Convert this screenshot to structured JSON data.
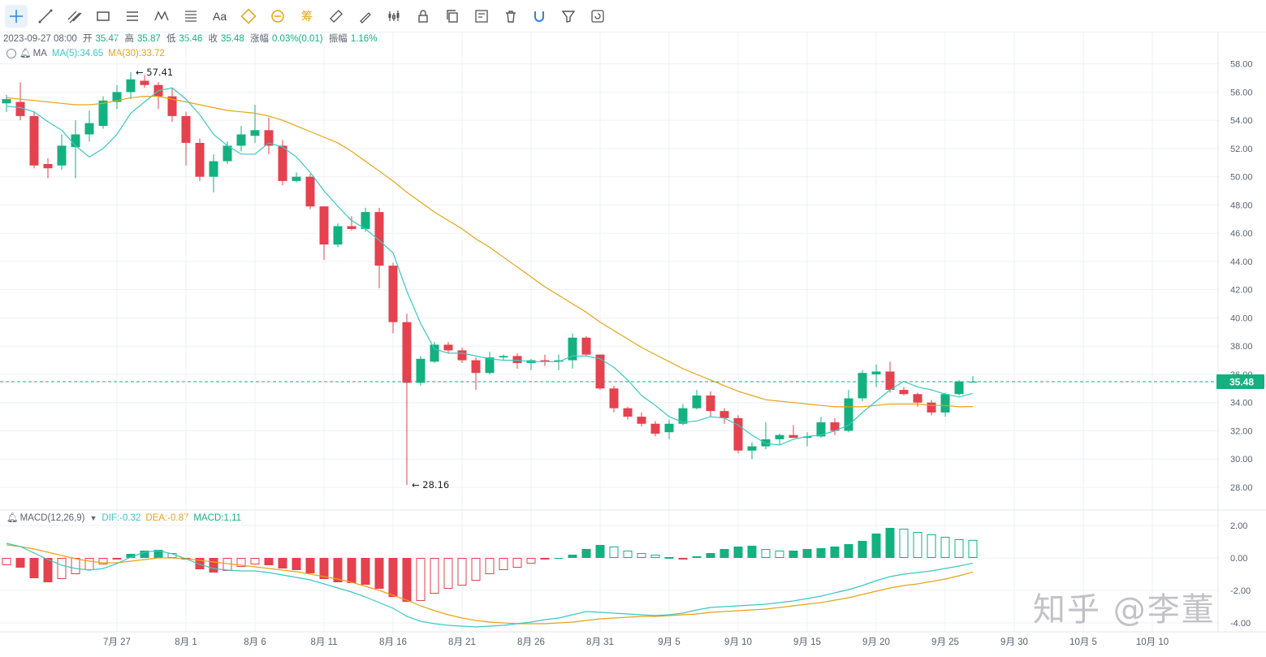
{
  "toolbar": {
    "tools": [
      {
        "icon": "crosshair-icon",
        "active": true
      },
      {
        "icon": "trend-line-icon"
      },
      {
        "icon": "parallel-channel-icon"
      },
      {
        "icon": "rectangle-icon"
      },
      {
        "icon": "horizontal-lines-icon"
      },
      {
        "icon": "wave-pattern-icon"
      },
      {
        "icon": "fibonacci-icon"
      },
      {
        "text": "Aa",
        "icon": "text-tool-icon"
      },
      {
        "icon": "price-range-icon",
        "color": "#e8a317"
      },
      {
        "icon": "date-range-icon",
        "color": "#e8a317"
      },
      {
        "text": "筹",
        "icon": "chip-distribution-icon",
        "color": "#e8a317"
      },
      {
        "icon": "ruler-icon"
      },
      {
        "icon": "brush-icon"
      },
      {
        "icon": "candles-icon"
      },
      {
        "icon": "lock-icon"
      },
      {
        "icon": "copy-icon"
      },
      {
        "icon": "edit-template-icon"
      },
      {
        "icon": "trash-icon"
      },
      {
        "icon": "magnet-icon",
        "color": "#2f80ed"
      },
      {
        "icon": "filter-icon"
      },
      {
        "icon": "refresh-copy-icon"
      }
    ]
  },
  "ohlc_info": {
    "datetime": "2023-09-27 08:00",
    "open_label": "开",
    "open": "35.47",
    "high_label": "高",
    "high": "35.87",
    "low_label": "低",
    "low": "35.46",
    "close_label": "收",
    "close": "35.48",
    "change_label": "涨幅",
    "change": "0.03%(0.01)",
    "amplitude_label": "振幅",
    "amplitude": "1.16%"
  },
  "ma_legend": {
    "name": "MA",
    "ma5": "MA(5):34.65",
    "ma30": "MA(30):33.72"
  },
  "macd_legend": {
    "name": "MACD(12,26,9)",
    "dif": "DIF:-0.32",
    "dea": "DEA:-0.87",
    "macd": "MACD:1.11"
  },
  "colors": {
    "up": "#13b17f",
    "down": "#e5414e",
    "ma5": "#38c9c3",
    "ma30": "#e8a317",
    "grid": "#eef0f3",
    "axis_text": "#5b6270"
  },
  "watermark": "知乎 @李董",
  "chart_data": [
    {
      "type": "candlestick",
      "panel": "price",
      "ylim": [
        27,
        59
      ],
      "yticks": [
        "28.00",
        "30.00",
        "32.00",
        "34.00",
        "36.00",
        "38.00",
        "40.00",
        "42.00",
        "44.00",
        "46.00",
        "48.00",
        "50.00",
        "52.00",
        "54.00",
        "56.00",
        "58.00"
      ],
      "last_price_label": "35.48",
      "last_price": 35.48,
      "high_annotation": {
        "label": "57.41",
        "value": 57.41,
        "index": 9
      },
      "low_annotation": {
        "label": "28.16",
        "value": 28.16,
        "index": 29
      },
      "xtick_labels": [
        {
          "label": "7月 27",
          "index": 8
        },
        {
          "label": "8月 1",
          "index": 13
        },
        {
          "label": "8月 6",
          "index": 18
        },
        {
          "label": "8月 11",
          "index": 23
        },
        {
          "label": "8月 16",
          "index": 28
        },
        {
          "label": "8月 21",
          "index": 33
        },
        {
          "label": "8月 26",
          "index": 38
        },
        {
          "label": "8月 31",
          "index": 43
        },
        {
          "label": "9月 5",
          "index": 48
        },
        {
          "label": "9月 10",
          "index": 53
        },
        {
          "label": "9月 15",
          "index": 58
        },
        {
          "label": "9月 20",
          "index": 63
        },
        {
          "label": "9月 25",
          "index": 68
        },
        {
          "label": "9月 30",
          "index": 73
        },
        {
          "label": "10月 5",
          "index": 78
        },
        {
          "label": "10月 10",
          "index": 83
        }
      ],
      "candles": [
        {
          "o": 55.2,
          "h": 55.8,
          "l": 54.6,
          "c": 55.5
        },
        {
          "o": 55.3,
          "h": 56.7,
          "l": 54.0,
          "c": 54.3
        },
        {
          "o": 54.3,
          "h": 54.6,
          "l": 50.6,
          "c": 50.8
        },
        {
          "o": 50.9,
          "h": 51.3,
          "l": 49.9,
          "c": 50.6
        },
        {
          "o": 50.8,
          "h": 53.0,
          "l": 50.5,
          "c": 52.2
        },
        {
          "o": 52.1,
          "h": 54.0,
          "l": 49.9,
          "c": 53.0
        },
        {
          "o": 53.0,
          "h": 54.7,
          "l": 52.5,
          "c": 53.8
        },
        {
          "o": 53.6,
          "h": 55.7,
          "l": 53.4,
          "c": 55.4
        },
        {
          "o": 55.3,
          "h": 56.5,
          "l": 54.8,
          "c": 56.0
        },
        {
          "o": 56.0,
          "h": 57.41,
          "l": 55.5,
          "c": 56.9
        },
        {
          "o": 56.8,
          "h": 57.2,
          "l": 56.3,
          "c": 56.5
        },
        {
          "o": 56.5,
          "h": 56.7,
          "l": 54.8,
          "c": 55.7
        },
        {
          "o": 55.7,
          "h": 56.3,
          "l": 53.9,
          "c": 54.3
        },
        {
          "o": 54.3,
          "h": 54.6,
          "l": 50.8,
          "c": 52.4
        },
        {
          "o": 52.4,
          "h": 52.7,
          "l": 49.7,
          "c": 50.0
        },
        {
          "o": 50.0,
          "h": 51.6,
          "l": 48.9,
          "c": 51.1
        },
        {
          "o": 51.1,
          "h": 52.5,
          "l": 50.9,
          "c": 52.2
        },
        {
          "o": 52.2,
          "h": 53.6,
          "l": 51.8,
          "c": 53.0
        },
        {
          "o": 52.9,
          "h": 55.1,
          "l": 52.4,
          "c": 53.3
        },
        {
          "o": 53.3,
          "h": 54.2,
          "l": 51.6,
          "c": 52.2
        },
        {
          "o": 52.2,
          "h": 52.6,
          "l": 49.4,
          "c": 49.7
        },
        {
          "o": 49.7,
          "h": 50.3,
          "l": 49.6,
          "c": 50.0
        },
        {
          "o": 50.0,
          "h": 50.2,
          "l": 47.7,
          "c": 47.9
        },
        {
          "o": 47.9,
          "h": 47.9,
          "l": 44.1,
          "c": 45.2
        },
        {
          "o": 45.2,
          "h": 46.7,
          "l": 45.0,
          "c": 46.5
        },
        {
          "o": 46.5,
          "h": 47.2,
          "l": 46.2,
          "c": 46.3
        },
        {
          "o": 46.3,
          "h": 47.8,
          "l": 46.1,
          "c": 47.5
        },
        {
          "o": 47.5,
          "h": 47.8,
          "l": 42.1,
          "c": 43.7
        },
        {
          "o": 43.7,
          "h": 43.9,
          "l": 38.9,
          "c": 39.7
        },
        {
          "o": 39.7,
          "h": 40.3,
          "l": 28.16,
          "c": 35.4
        },
        {
          "o": 35.4,
          "h": 37.3,
          "l": 35.2,
          "c": 37.1
        },
        {
          "o": 36.9,
          "h": 38.3,
          "l": 36.8,
          "c": 38.1
        },
        {
          "o": 38.1,
          "h": 38.3,
          "l": 37.5,
          "c": 37.7
        },
        {
          "o": 37.7,
          "h": 37.9,
          "l": 36.8,
          "c": 37.0
        },
        {
          "o": 37.0,
          "h": 37.2,
          "l": 34.9,
          "c": 36.1
        },
        {
          "o": 36.1,
          "h": 37.6,
          "l": 36.0,
          "c": 37.2
        },
        {
          "o": 37.2,
          "h": 37.4,
          "l": 37.0,
          "c": 37.3
        },
        {
          "o": 37.3,
          "h": 37.5,
          "l": 36.4,
          "c": 36.8
        },
        {
          "o": 36.8,
          "h": 37.1,
          "l": 36.3,
          "c": 37.0
        },
        {
          "o": 37.0,
          "h": 37.4,
          "l": 36.6,
          "c": 36.9
        },
        {
          "o": 36.9,
          "h": 37.4,
          "l": 36.3,
          "c": 37.0
        },
        {
          "o": 37.0,
          "h": 38.9,
          "l": 36.4,
          "c": 38.6
        },
        {
          "o": 38.6,
          "h": 38.7,
          "l": 37.3,
          "c": 37.4
        },
        {
          "o": 37.4,
          "h": 37.4,
          "l": 34.9,
          "c": 35.0
        },
        {
          "o": 35.0,
          "h": 35.2,
          "l": 33.3,
          "c": 33.6
        },
        {
          "o": 33.6,
          "h": 33.7,
          "l": 32.8,
          "c": 33.0
        },
        {
          "o": 33.0,
          "h": 33.3,
          "l": 32.3,
          "c": 32.5
        },
        {
          "o": 32.5,
          "h": 32.7,
          "l": 31.6,
          "c": 31.8
        },
        {
          "o": 31.9,
          "h": 32.8,
          "l": 31.4,
          "c": 32.5
        },
        {
          "o": 32.5,
          "h": 33.9,
          "l": 32.4,
          "c": 33.6
        },
        {
          "o": 33.6,
          "h": 34.9,
          "l": 33.5,
          "c": 34.5
        },
        {
          "o": 34.5,
          "h": 34.8,
          "l": 33.0,
          "c": 33.4
        },
        {
          "o": 33.4,
          "h": 33.6,
          "l": 32.5,
          "c": 32.9
        },
        {
          "o": 32.9,
          "h": 33.1,
          "l": 30.4,
          "c": 30.6
        },
        {
          "o": 30.6,
          "h": 31.2,
          "l": 30.0,
          "c": 30.9
        },
        {
          "o": 30.9,
          "h": 32.6,
          "l": 30.7,
          "c": 31.4
        },
        {
          "o": 31.4,
          "h": 31.8,
          "l": 31.0,
          "c": 31.7
        },
        {
          "o": 31.7,
          "h": 32.4,
          "l": 31.5,
          "c": 31.5
        },
        {
          "o": 31.5,
          "h": 31.9,
          "l": 30.9,
          "c": 31.6
        },
        {
          "o": 31.6,
          "h": 33.0,
          "l": 31.5,
          "c": 32.6
        },
        {
          "o": 32.6,
          "h": 32.9,
          "l": 31.7,
          "c": 32.0
        },
        {
          "o": 32.0,
          "h": 34.9,
          "l": 31.9,
          "c": 34.3
        },
        {
          "o": 34.3,
          "h": 36.3,
          "l": 34.1,
          "c": 36.1
        },
        {
          "o": 36.0,
          "h": 36.7,
          "l": 35.1,
          "c": 36.2
        },
        {
          "o": 36.2,
          "h": 36.9,
          "l": 34.7,
          "c": 34.9
        },
        {
          "o": 34.9,
          "h": 35.1,
          "l": 34.5,
          "c": 34.6
        },
        {
          "o": 34.6,
          "h": 34.7,
          "l": 33.7,
          "c": 34.0
        },
        {
          "o": 34.0,
          "h": 34.2,
          "l": 33.1,
          "c": 33.3
        },
        {
          "o": 33.3,
          "h": 34.7,
          "l": 33.0,
          "c": 34.6
        },
        {
          "o": 34.6,
          "h": 35.6,
          "l": 34.5,
          "c": 35.5
        },
        {
          "o": 35.47,
          "h": 35.87,
          "l": 35.46,
          "c": 35.48
        }
      ],
      "ma5": [
        55.0,
        54.9,
        54.6,
        53.9,
        53.3,
        52.2,
        51.4,
        52.0,
        53.0,
        54.5,
        55.3,
        56.1,
        56.3,
        55.5,
        54.4,
        53.0,
        52.2,
        51.6,
        51.6,
        52.4,
        52.1,
        51.4,
        50.3,
        49.0,
        47.9,
        46.9,
        46.3,
        45.5,
        44.6,
        41.9,
        39.6,
        37.8,
        37.5,
        37.5,
        37.3,
        37.1,
        37.0,
        37.0,
        36.9,
        36.9,
        36.9,
        37.3,
        37.3,
        37.1,
        36.5,
        35.6,
        34.5,
        33.8,
        33.0,
        32.6,
        32.7,
        33.0,
        32.9,
        32.4,
        31.7,
        31.1,
        31.0,
        31.4,
        31.6,
        31.7,
        32.0,
        32.4,
        33.3,
        34.1,
        34.9,
        35.5,
        35.1,
        34.9,
        34.6,
        34.4,
        34.65
      ],
      "ma30": [
        55.6,
        55.5,
        55.4,
        55.3,
        55.2,
        55.1,
        55.1,
        55.2,
        55.4,
        55.6,
        55.7,
        55.7,
        55.5,
        55.3,
        55.1,
        54.9,
        54.7,
        54.6,
        54.5,
        54.3,
        54.0,
        53.6,
        53.2,
        52.8,
        52.4,
        51.8,
        51.1,
        50.4,
        49.7,
        48.9,
        48.2,
        47.5,
        46.9,
        46.3,
        45.6,
        45.0,
        44.3,
        43.6,
        42.9,
        42.2,
        41.6,
        41.0,
        40.4,
        39.7,
        39.1,
        38.5,
        37.9,
        37.4,
        36.9,
        36.4,
        36.0,
        35.6,
        35.2,
        34.8,
        34.5,
        34.2,
        34.1,
        34.0,
        33.9,
        33.8,
        33.7,
        33.7,
        33.7,
        33.8,
        33.9,
        33.9,
        33.9,
        33.8,
        33.8,
        33.7,
        33.72
      ]
    },
    {
      "type": "bar",
      "panel": "macd",
      "ylim": [
        -4.2,
        2.8
      ],
      "yticks": [
        "2.00",
        "0.00",
        "-2.00",
        "-4.00"
      ],
      "hist": [
        -0.45,
        -0.6,
        -1.25,
        -1.5,
        -1.3,
        -1.0,
        -0.75,
        -0.4,
        -0.1,
        0.25,
        0.45,
        0.5,
        0.3,
        -0.1,
        -0.7,
        -0.9,
        -0.8,
        -0.55,
        -0.4,
        -0.45,
        -0.65,
        -0.75,
        -0.95,
        -1.3,
        -1.5,
        -1.55,
        -1.65,
        -1.9,
        -2.4,
        -2.7,
        -2.65,
        -2.2,
        -1.9,
        -1.7,
        -1.4,
        -1.0,
        -0.75,
        -0.6,
        -0.35,
        -0.1,
        0.0,
        0.2,
        0.55,
        0.8,
        0.7,
        0.45,
        0.3,
        0.2,
        0.05,
        -0.1,
        0.1,
        0.3,
        0.55,
        0.7,
        0.75,
        0.55,
        0.45,
        0.45,
        0.55,
        0.6,
        0.7,
        0.85,
        1.05,
        1.5,
        1.85,
        1.8,
        1.6,
        1.45,
        1.3,
        1.15,
        1.11
      ],
      "dif": [
        0.9,
        0.7,
        0.3,
        -0.1,
        -0.45,
        -0.65,
        -0.75,
        -0.65,
        -0.35,
        0.05,
        0.35,
        0.45,
        0.25,
        -0.05,
        -0.4,
        -0.65,
        -0.75,
        -0.8,
        -0.8,
        -0.9,
        -1.05,
        -1.2,
        -1.35,
        -1.6,
        -1.85,
        -2.1,
        -2.4,
        -2.75,
        -3.1,
        -3.6,
        -3.9,
        -4.05,
        -4.15,
        -4.2,
        -4.25,
        -4.2,
        -4.15,
        -4.05,
        -3.95,
        -3.8,
        -3.7,
        -3.5,
        -3.3,
        -3.35,
        -3.4,
        -3.45,
        -3.5,
        -3.55,
        -3.5,
        -3.4,
        -3.2,
        -3.05,
        -3.0,
        -2.95,
        -2.9,
        -2.85,
        -2.75,
        -2.65,
        -2.5,
        -2.35,
        -2.15,
        -1.95,
        -1.7,
        -1.4,
        -1.15,
        -1.0,
        -0.9,
        -0.8,
        -0.65,
        -0.5,
        -0.32
      ],
      "dea": [
        0.8,
        0.7,
        0.55,
        0.35,
        0.15,
        -0.05,
        -0.2,
        -0.3,
        -0.3,
        -0.2,
        -0.1,
        0.0,
        0.0,
        -0.05,
        -0.15,
        -0.25,
        -0.35,
        -0.45,
        -0.55,
        -0.65,
        -0.75,
        -0.85,
        -1.0,
        -1.15,
        -1.3,
        -1.5,
        -1.75,
        -2.0,
        -2.3,
        -2.6,
        -2.95,
        -3.25,
        -3.5,
        -3.7,
        -3.85,
        -3.95,
        -4.0,
        -4.05,
        -4.05,
        -4.05,
        -4.0,
        -3.95,
        -3.85,
        -3.75,
        -3.7,
        -3.65,
        -3.6,
        -3.6,
        -3.55,
        -3.5,
        -3.45,
        -3.35,
        -3.3,
        -3.25,
        -3.2,
        -3.15,
        -3.05,
        -2.95,
        -2.85,
        -2.75,
        -2.6,
        -2.45,
        -2.25,
        -2.05,
        -1.85,
        -1.7,
        -1.6,
        -1.45,
        -1.3,
        -1.1,
        -0.87
      ]
    }
  ]
}
